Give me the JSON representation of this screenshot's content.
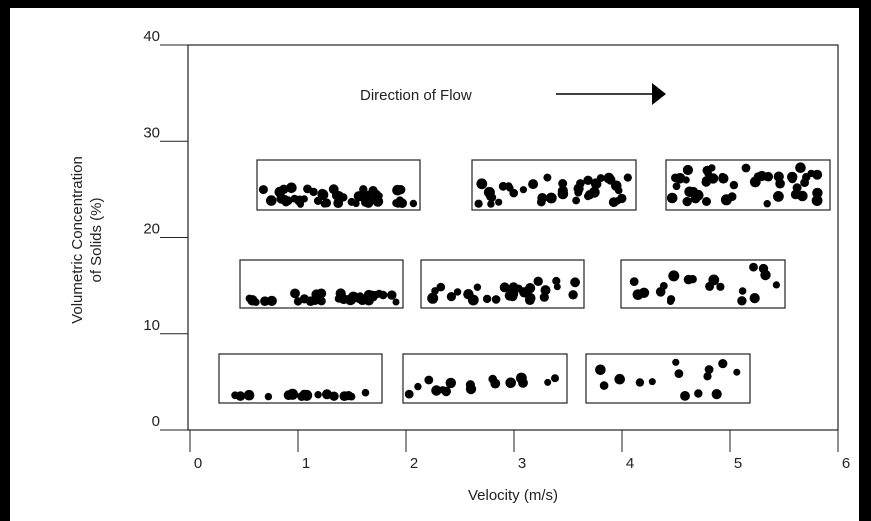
{
  "axes": {
    "ylabel": [
      "Volumetric Concentration",
      "of Solids (%)"
    ],
    "xlabel": "Velocity (m/s)",
    "xlim": [
      0,
      6
    ],
    "xticks": [
      0,
      1,
      2,
      3,
      4,
      5,
      6
    ],
    "ylim": [
      0,
      40
    ],
    "yticks": [
      0,
      10,
      20,
      30,
      40
    ]
  },
  "annotation": "Direction of Flow"
}
